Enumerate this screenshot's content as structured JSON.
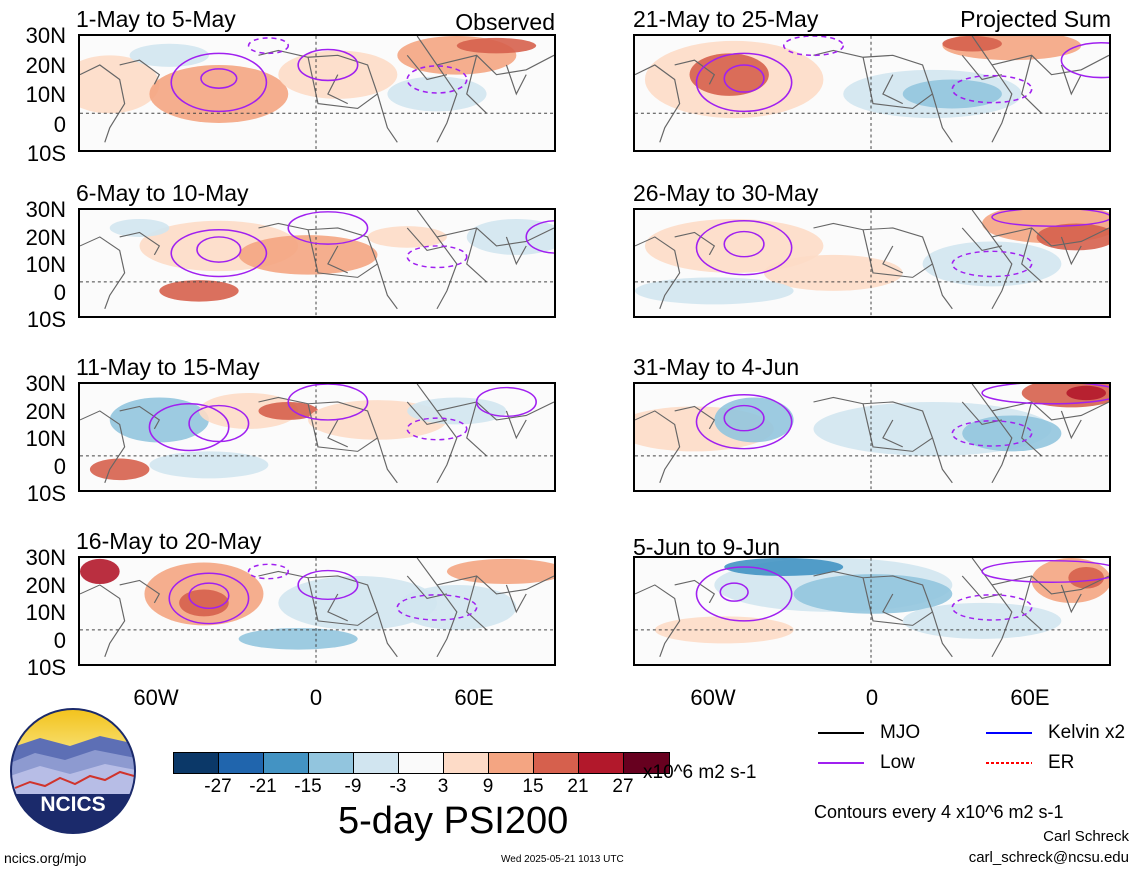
{
  "panels": [
    {
      "title": "1-May to 5-May",
      "tag": "Observed"
    },
    {
      "title": "6-May to 10-May",
      "tag": ""
    },
    {
      "title": "11-May to 15-May",
      "tag": ""
    },
    {
      "title": "16-May to 20-May",
      "tag": ""
    },
    {
      "title": "21-May to 25-May",
      "tag": "Projected Sum"
    },
    {
      "title": "26-May to 30-May",
      "tag": ""
    },
    {
      "title": "31-May to 4-Jun",
      "tag": ""
    },
    {
      "title": "5-Jun to 9-Jun",
      "tag": ""
    }
  ],
  "latitude_labels": [
    "30N",
    "20N",
    "10N",
    "0",
    "10S"
  ],
  "longitude_labels": [
    "60W",
    "0",
    "60E"
  ],
  "colorbar": {
    "ticks": [
      "-27",
      "-21",
      "-15",
      "-9",
      "-3",
      "3",
      "9",
      "15",
      "21",
      "27"
    ],
    "colors": [
      "#0b3868",
      "#2065ad",
      "#4393c3",
      "#92c5de",
      "#d1e5f0",
      "#fafafa",
      "#fddbc7",
      "#f4a582",
      "#d6604d",
      "#b2182b",
      "#67001f"
    ],
    "units": "x10^6 m2 s-1"
  },
  "main_title": "5-day PSI200",
  "legend": [
    {
      "label": "MJO",
      "color": "#000000",
      "style": "solid"
    },
    {
      "label": "Kelvin x2",
      "color": "#0000ff",
      "style": "solid"
    },
    {
      "label": "Low",
      "color": "#a020f0",
      "style": "solid"
    },
    {
      "label": "ER",
      "color": "#ff0000",
      "style": "dotted"
    }
  ],
  "contour_note": "Contours every 4 x10^6 m2 s-1",
  "author": "Carl Schreck",
  "email": "carl_schreck@ncsu.edu",
  "site": "ncics.org/mjo",
  "timestamp": "Wed 2025-05-21 1013 UTC",
  "logo_text": "NCICS"
}
